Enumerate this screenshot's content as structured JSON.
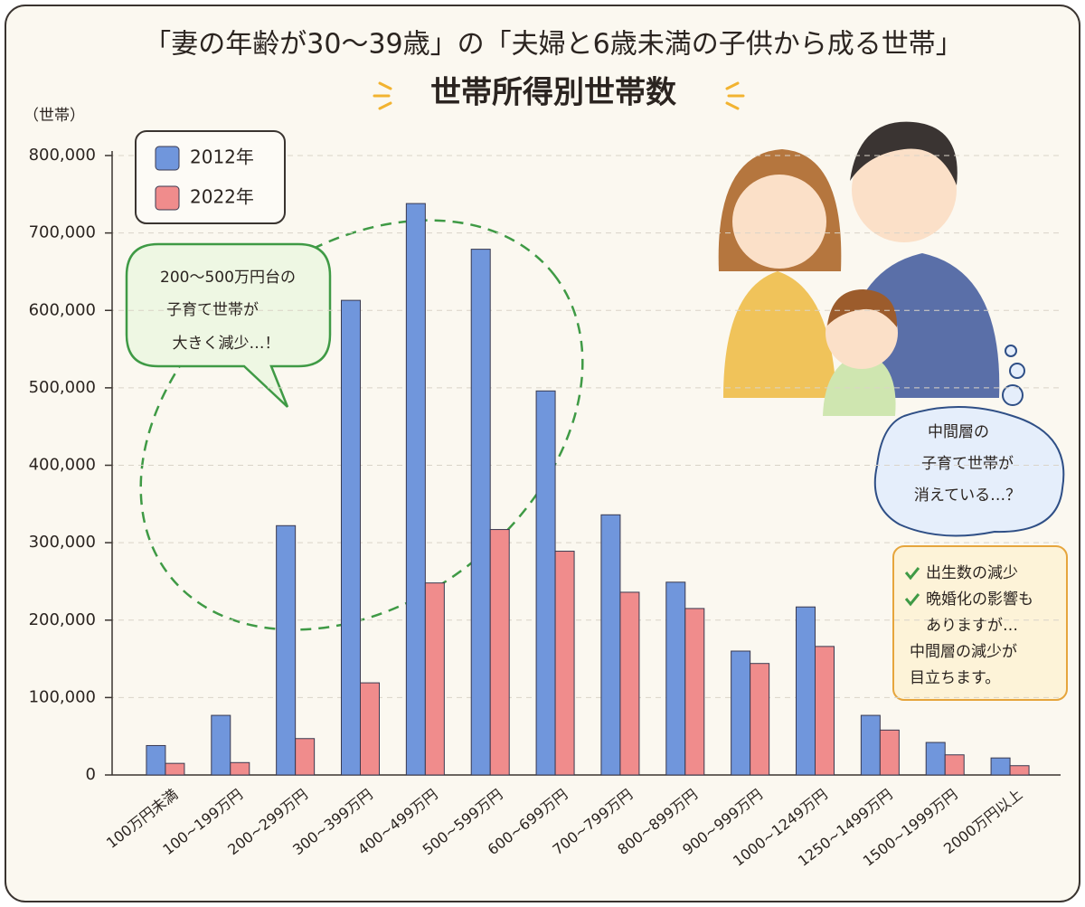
{
  "chart_data": {
    "type": "bar",
    "title": "「妻の年齢が30～39歳」の「夫婦と6歳未満の子供から成る世帯」",
    "subtitle": "世帯所得別世帯数",
    "y_label": "（世帯）",
    "categories": [
      "100万円未満",
      "100~199万円",
      "200~299万円",
      "300~399万円",
      "400~499万円",
      "500~599万円",
      "600~699万円",
      "700~799万円",
      "800~899万円",
      "900~999万円",
      "1000~1249万円",
      "1250~1499万円",
      "1500~1999万円",
      "2000万円以上"
    ],
    "series": [
      {
        "name": "2012年",
        "color": "#7096dc",
        "values": [
          38000,
          77000,
          322000,
          613000,
          738000,
          679000,
          496000,
          336000,
          249000,
          160000,
          217000,
          77000,
          42000,
          22000
        ]
      },
      {
        "name": "2022年",
        "color": "#f08c8c",
        "values": [
          15000,
          16000,
          47000,
          119000,
          248000,
          317000,
          289000,
          236000,
          215000,
          144000,
          166000,
          58000,
          26000,
          12000
        ]
      }
    ],
    "ylim": [
      0,
      800000
    ],
    "yticks": [
      0,
      {
        "value": 100000,
        "label": "100,000"
      },
      {
        "value": 200000,
        "label": "200,000"
      },
      {
        "value": 300000,
        "label": "300,000"
      },
      {
        "value": 400000,
        "label": "400,000"
      },
      {
        "value": 500000,
        "label": "500,000"
      },
      {
        "value": 600000,
        "label": "600,000"
      },
      {
        "value": 700000,
        "label": "700,000"
      },
      {
        "value": 800000,
        "label": "800,000"
      }
    ],
    "grid": true,
    "legend": "top-left",
    "annotations": {
      "callout": [
        "200～500万円台の",
        "子育て世帯が",
        "大きく減少…！"
      ],
      "thought": [
        "中間層の",
        "子育て世帯が",
        "消えている…？"
      ],
      "note": [
        "出生数の減少",
        "晩婚化の影響も",
        "ありますが…",
        "中間層の減少が",
        "目立ちます。"
      ]
    }
  }
}
